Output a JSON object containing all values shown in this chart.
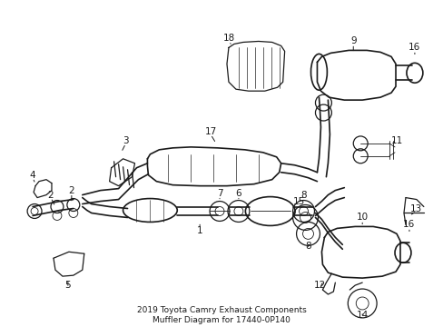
{
  "title": "2019 Toyota Camry Exhaust Components\nMuffler Diagram for 17440-0P140",
  "title_fontsize": 6.5,
  "bg_color": "#ffffff",
  "line_color": "#1a1a1a",
  "label_fontsize": 7.5,
  "fig_width": 4.89,
  "fig_height": 3.6,
  "dpi": 100,
  "xlim": [
    0,
    489
  ],
  "ylim": [
    0,
    360
  ]
}
